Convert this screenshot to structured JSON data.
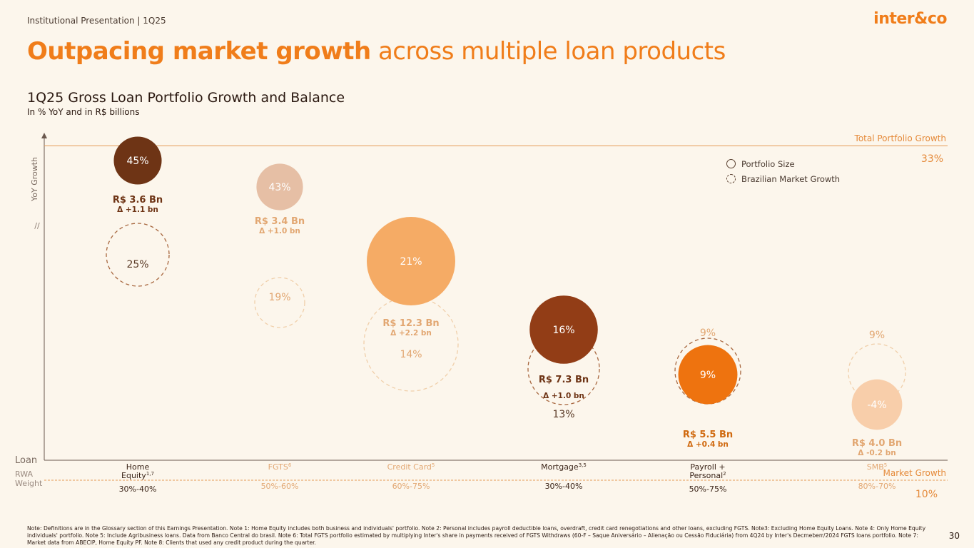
{
  "header": {
    "section_label": "Institutional Presentation | 1Q25",
    "logo_text": "inter&co",
    "page_number": "30"
  },
  "title": {
    "bold_part": "Outpacing market growth",
    "regular_part": " across multiple loan products"
  },
  "legend": {
    "portfolio_size": "Portfolio Size",
    "market_growth": "Brazilian Market Growth"
  },
  "notes": {
    "text": "Note: Definitions are in the Glossary section of this Earnings Presentation. Note 1: Home Equity includes both business and individuals' portfolio. Note 2: Personal includes payroll deductible loans, overdraft, credit card renegotiations and other loans, excluding FGTS. Note3: Excluding Home Equity Loans. Note 4: Only Home Equity individuals' portfolio. Note 5: Include Agribusiness loans. Data from Banco Central do brasil. Note 6: Total FGTS portfolio estimated by multiplying Inter's share in payments received of FGTS Withdraws (60-F – Saque Aniversário – Alienação ou Cessão Fiduciária) from 4Q24 by Inter's Decmeberr/2024 FGTS loans portfolio. Note 7: Market data from ABECIP, Home Equity PF. Note 8: Clients that used any credit product during the quarter."
  },
  "colors": {
    "accent": "#f07d1a",
    "home_equity": "#6e3415",
    "fgts": "#e6bfa5",
    "credit_card": "#f5ab65",
    "mortgage": "#923d16",
    "payroll": "#ee730f",
    "smb": "#f8ceaa"
  },
  "chart_data": {
    "type": "bubble",
    "title": "1Q25 Gross Loan Portfolio Growth and Balance",
    "subtitle": "In % YoY and in R$ billions",
    "y_axis_label": "YoY Growth",
    "x_axis_label": "Loan",
    "rwa_label_line1": "RWA",
    "rwa_label_line2": "Weight",
    "reference_lines": {
      "total": {
        "label": "Total Portfolio Growth",
        "value_label": "33%",
        "value": 33
      },
      "market": {
        "label": "Market Growth",
        "value_label": "10%",
        "value": 10
      }
    },
    "series": [
      {
        "category_line1": "Home",
        "category_line2": "Equity",
        "sup2": "1,7",
        "rwa": "30%-40%",
        "growth": 45,
        "growth_label": "45%",
        "market_growth": 25,
        "market_label": "25%",
        "balance": 3.6,
        "balance_label": "R$ 3.6 Bn",
        "delta_label": "Δ +1.1 bn",
        "color": "#6e3415",
        "muted": false
      },
      {
        "category_line1": "FGTS",
        "category_line2": "",
        "sup1": "6",
        "rwa": "50%-60%",
        "growth": 43,
        "growth_label": "43%",
        "market_growth": 19,
        "market_label": "19%",
        "balance": 3.4,
        "balance_label": "R$ 3.4 Bn",
        "delta_label": "Δ +1.0 bn",
        "color": "#e6bfa5",
        "muted": true
      },
      {
        "category_line1": "Credit Card",
        "category_line2": "",
        "sup1": "5",
        "rwa": "60%-75%",
        "growth": 21,
        "growth_label": "21%",
        "market_growth": 14,
        "market_label": "14%",
        "balance": 12.3,
        "balance_label": "R$ 12.3 Bn",
        "delta_label": "Δ +2.2 bn",
        "color": "#f5ab65",
        "muted": true
      },
      {
        "category_line1": "Mortgage",
        "category_line2": "",
        "sup1": "3,5",
        "rwa": "30%-40%",
        "growth": 16,
        "growth_label": "16%",
        "market_growth": 13,
        "market_label": "13%",
        "balance": 7.3,
        "balance_label": "R$ 7.3 Bn",
        "delta_label": "Δ +1.0 bn",
        "color": "#923d16",
        "muted": false
      },
      {
        "category_line1": "Payroll +",
        "category_line2": "Personal",
        "sup2": "2",
        "rwa": "50%-75%",
        "growth": 9,
        "growth_label": "9%",
        "market_growth": 9,
        "market_label": "9%",
        "balance": 5.5,
        "balance_label": "R$ 5.5 Bn",
        "delta_label": "Δ +0.4 bn",
        "color": "#ee730f",
        "muted": false
      },
      {
        "category_line1": "SMB",
        "category_line2": "",
        "sup1": "5",
        "rwa": "80%-70%",
        "growth": -4,
        "growth_label": "-4%",
        "market_growth": 9,
        "market_label": "9%",
        "balance": 4.0,
        "balance_label": "R$ 4.0 Bn",
        "delta_label": "Δ -0.2 bn",
        "color": "#f8ceaa",
        "muted": true
      }
    ]
  }
}
